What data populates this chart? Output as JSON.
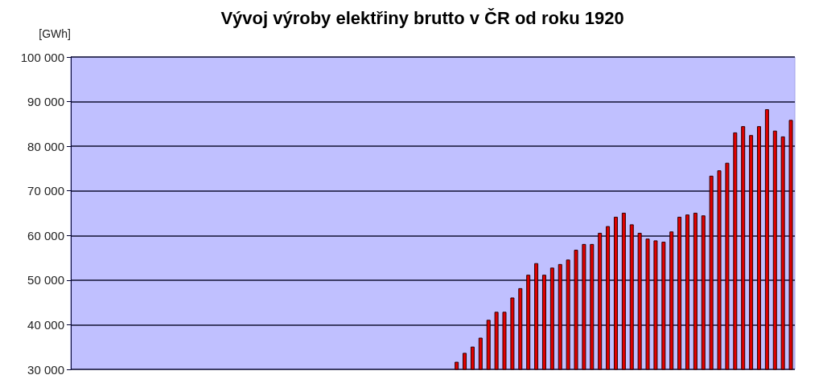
{
  "chart_data": {
    "type": "bar",
    "title": "Vývoj výroby elektřiny brutto v ČR od roku 1920",
    "ylabel": "[GWh]",
    "categories": [
      null,
      null,
      null,
      null,
      null,
      null,
      null,
      null,
      null,
      null,
      null,
      null,
      null,
      null,
      null,
      null,
      null,
      null,
      null,
      null,
      null,
      null,
      null,
      null,
      null,
      null,
      null,
      null,
      null,
      null,
      null,
      null,
      null,
      null,
      null,
      null,
      null,
      null,
      null,
      null,
      null,
      null,
      null,
      null,
      null,
      null,
      null,
      null,
      null,
      null,
      null,
      null,
      null,
      null,
      null,
      null,
      null,
      null,
      null,
      null,
      null,
      null,
      null,
      null,
      null,
      null,
      null,
      null,
      null,
      null,
      null,
      null,
      null,
      null,
      null,
      null,
      null,
      null,
      null,
      null,
      null,
      null,
      null,
      null,
      null,
      null,
      null,
      null,
      null,
      null,
      null
    ],
    "values": [
      null,
      null,
      null,
      null,
      null,
      null,
      null,
      null,
      null,
      null,
      null,
      null,
      null,
      null,
      null,
      null,
      null,
      null,
      null,
      null,
      null,
      null,
      null,
      null,
      null,
      null,
      null,
      null,
      null,
      null,
      null,
      null,
      null,
      null,
      null,
      null,
      null,
      null,
      null,
      null,
      null,
      null,
      null,
      null,
      null,
      null,
      null,
      null,
      31700,
      33700,
      35100,
      37100,
      41100,
      42900,
      42900,
      46100,
      48200,
      51200,
      53800,
      51200,
      52800,
      53600,
      54600,
      56800,
      58100,
      58100,
      60600,
      62100,
      64200,
      65100,
      62500,
      60600,
      59300,
      58900,
      58600,
      60900,
      64200,
      64700,
      65100,
      64500,
      73400,
      74600,
      76300,
      83100,
      84500,
      82500,
      84500,
      88300,
      83500,
      82200,
      85900
    ],
    "color": "#e00000",
    "ylim": [
      30000,
      100000
    ],
    "yticks": [
      {
        "value": 30000,
        "label": "30 000"
      },
      {
        "value": 40000,
        "label": "40 000"
      },
      {
        "value": 50000,
        "label": "50 000"
      },
      {
        "value": 60000,
        "label": "60 000"
      },
      {
        "value": 70000,
        "label": "70 000"
      },
      {
        "value": 80000,
        "label": "80 000"
      },
      {
        "value": 90000,
        "label": "90 000"
      },
      {
        "value": 100000,
        "label": "100 000"
      }
    ],
    "grid": "y"
  }
}
